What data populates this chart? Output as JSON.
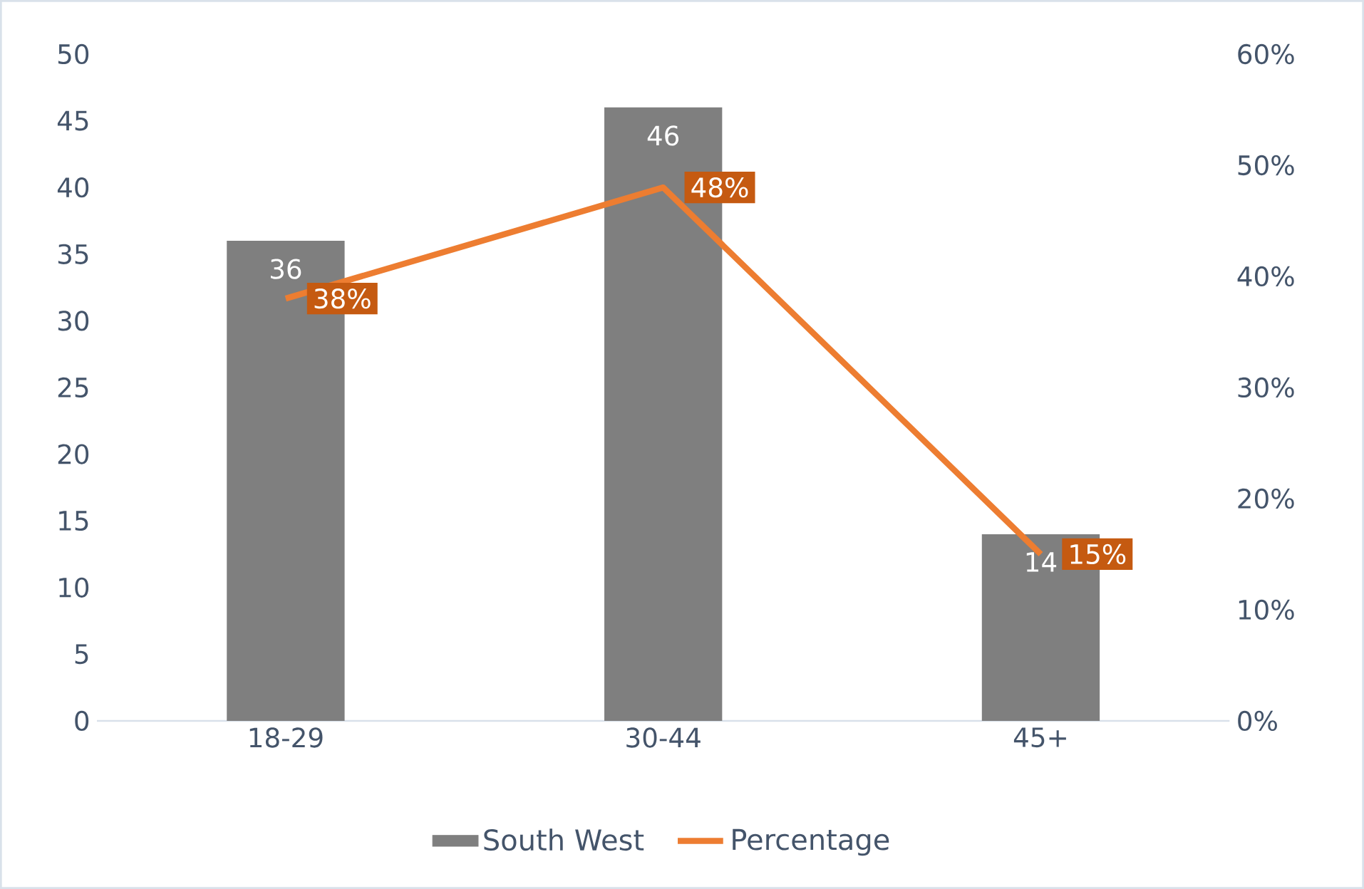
{
  "chart_data": {
    "type": "bar",
    "categories": [
      "18-29",
      "30-44",
      "45+"
    ],
    "series": [
      {
        "name": "South West",
        "color": "#7f7f7f",
        "values": [
          36,
          46,
          14
        ],
        "value_labels": [
          "36",
          "46",
          "14"
        ]
      },
      {
        "name": "Percentage",
        "type": "line",
        "axis": "y2",
        "color": "#ed7d31",
        "values": [
          38,
          48,
          15
        ],
        "value_labels": [
          "38%",
          "48%",
          "15%"
        ]
      }
    ],
    "ylim": [
      0,
      50
    ],
    "yticks": [
      0,
      5,
      10,
      15,
      20,
      25,
      30,
      35,
      40,
      45,
      50
    ],
    "y2lim": [
      0,
      60
    ],
    "y2ticks": [
      {
        "value": 0,
        "label": "0%"
      },
      {
        "value": 10,
        "label": "10%"
      },
      {
        "value": 20,
        "label": "20%"
      },
      {
        "value": 30,
        "label": "30%"
      },
      {
        "value": 40,
        "label": "40%"
      },
      {
        "value": 50,
        "label": "50%"
      },
      {
        "value": 60,
        "label": "60%"
      }
    ],
    "legend": "bottom"
  }
}
